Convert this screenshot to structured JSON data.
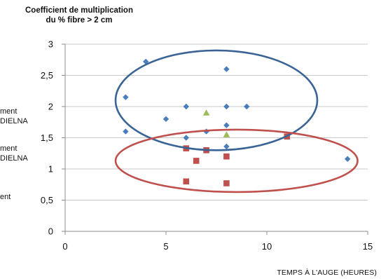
{
  "chart_data": {
    "type": "scatter",
    "title_lines": [
      "Coefficient de multiplication",
      "du % fibre > 2 cm"
    ],
    "xlabel": "TEMPS À L'AUGE (HEURES)",
    "xlim": [
      0,
      15
    ],
    "ylim": [
      0,
      3
    ],
    "xticks": [
      "0",
      "5",
      "10",
      "15"
    ],
    "yticks": [
      "0",
      "0,5",
      "1",
      "1,5",
      "2",
      "2,5",
      "3"
    ],
    "grid": "horizontal",
    "legend_fragments": [
      [
        "ment",
        "DIELNA"
      ],
      [
        "ment",
        "DIELNA"
      ],
      [
        "ent"
      ]
    ],
    "series": [
      {
        "marker": "diamond",
        "color": "#4a7ebb",
        "points": [
          [
            3,
            2.15
          ],
          [
            3,
            1.6
          ],
          [
            4,
            2.72
          ],
          [
            5,
            1.8
          ],
          [
            6,
            2.0
          ],
          [
            6,
            1.5
          ],
          [
            7,
            1.6
          ],
          [
            8,
            2.6
          ],
          [
            8,
            2.0
          ],
          [
            8,
            1.7
          ],
          [
            8,
            1.36
          ],
          [
            9,
            2.0
          ],
          [
            14,
            1.16
          ]
        ]
      },
      {
        "marker": "triangle",
        "color": "#9bbb59",
        "points": [
          [
            7,
            1.9
          ],
          [
            8,
            1.55
          ]
        ]
      },
      {
        "marker": "square",
        "color": "#c0504d",
        "points": [
          [
            6,
            1.33
          ],
          [
            6,
            0.8
          ],
          [
            6.5,
            1.13
          ],
          [
            7,
            1.3
          ],
          [
            8,
            1.2
          ],
          [
            8,
            0.77
          ],
          [
            11,
            1.52
          ]
        ]
      }
    ],
    "ellipses": [
      {
        "color": "#3a6496",
        "cx": 7.5,
        "cy": 2.1,
        "rx": 5.0,
        "ry": 0.8
      },
      {
        "color": "#c0504d",
        "cx": 8.5,
        "cy": 1.13,
        "rx": 6.0,
        "ry": 0.5
      }
    ]
  }
}
